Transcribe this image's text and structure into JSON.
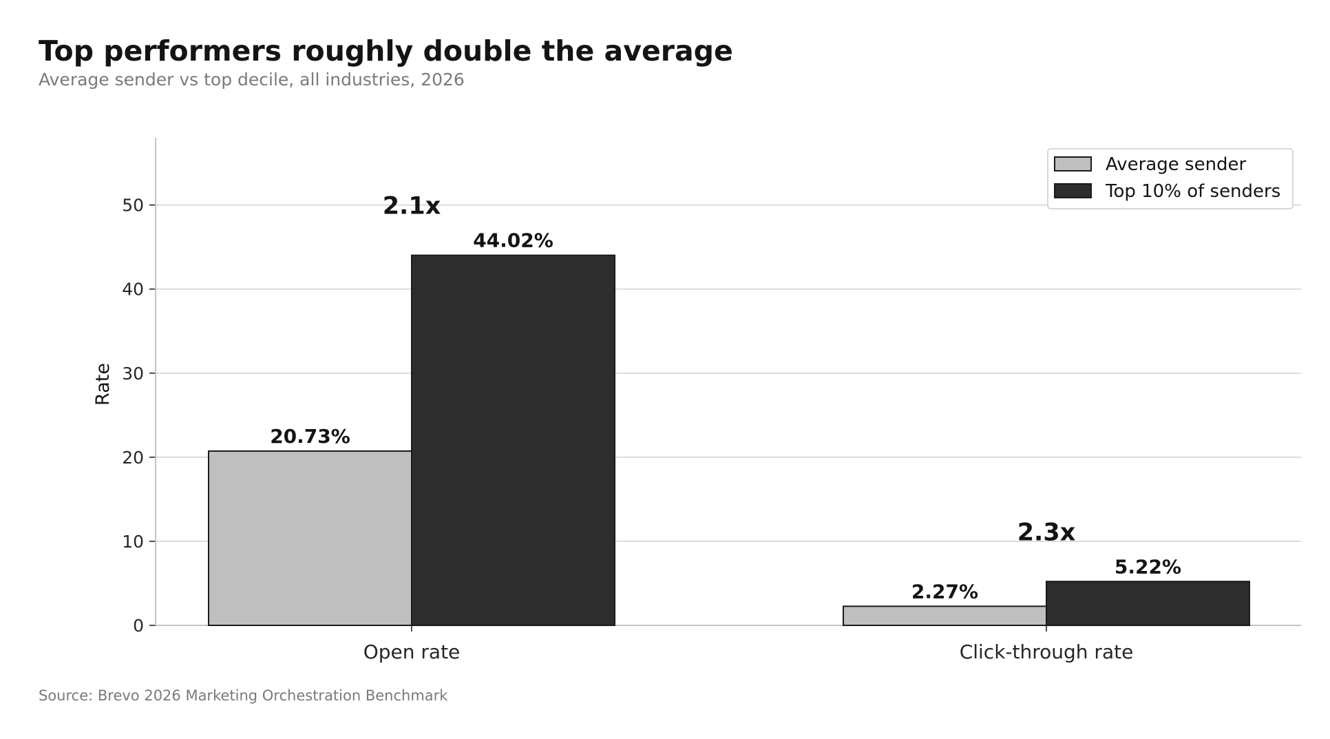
{
  "title": "Top performers roughly double the average",
  "subtitle": "Average sender vs top decile, all industries, 2026",
  "source": "Source: Brevo 2026 Marketing Orchestration Benchmark",
  "colors": {
    "average": "#bfbfbf",
    "top": "#2d2d2d",
    "edge": "#1a1a1a",
    "grid": "#d4d4d4",
    "axis": "#bdbdbd"
  },
  "chart_data": {
    "type": "bar",
    "categories": [
      "Open rate",
      "Click-through rate"
    ],
    "series": [
      {
        "name": "Average sender",
        "values": [
          20.73,
          2.27
        ],
        "labels": [
          "20.73%",
          "2.27%"
        ]
      },
      {
        "name": "Top 10% of senders",
        "values": [
          44.02,
          5.22
        ],
        "labels": [
          "44.02%",
          "5.22%"
        ]
      }
    ],
    "annotations": [
      "2.1x",
      "2.3x"
    ],
    "ylabel": "Rate",
    "xlabel": "",
    "ylim": [
      0,
      58
    ],
    "yticks": [
      0,
      10,
      20,
      30,
      40,
      50
    ],
    "grid": "horizontal",
    "legend": "top-right"
  }
}
